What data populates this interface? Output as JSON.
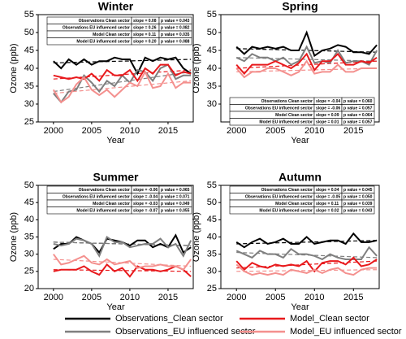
{
  "chart_data": [
    {
      "type": "line",
      "title": "Winter",
      "x_label": "Year",
      "y_label": "Ozone (ppb)",
      "x": [
        2000,
        2001,
        2002,
        2003,
        2004,
        2005,
        2006,
        2007,
        2008,
        2009,
        2010,
        2011,
        2012,
        2013,
        2014,
        2015,
        2016,
        2017,
        2018
      ],
      "xlim": [
        1998,
        2018.3
      ],
      "xticks": [
        2000,
        2005,
        2010,
        2015
      ],
      "ylim": [
        25,
        55
      ],
      "yticks": [
        25,
        30,
        35,
        40,
        45,
        50,
        55
      ],
      "series": [
        {
          "name": "Observations_Clean sector",
          "color": "#000000",
          "values": [
            42,
            40,
            42.5,
            41,
            42.5,
            41,
            42,
            42,
            43,
            42.5,
            42.5,
            38.5,
            43,
            42,
            43,
            42.5,
            43,
            40,
            38.5
          ],
          "trend": [
            41.5,
            42.5
          ]
        },
        {
          "name": "Observations_EU influenced sector",
          "color": "#7f7f7f",
          "values": [
            33,
            30.5,
            33.5,
            34,
            38,
            36,
            33.5,
            36.5,
            35,
            38,
            36,
            39.5,
            39,
            36.5,
            40,
            41,
            37,
            38,
            38
          ],
          "trend": [
            33.5,
            39
          ]
        },
        {
          "name": "Model_Clean sector",
          "color": "#e8191c",
          "values": [
            38,
            37.5,
            37,
            37.5,
            37,
            38.5,
            36.5,
            39.5,
            38,
            38,
            39.5,
            36.5,
            40,
            38.5,
            41,
            41,
            38,
            39,
            38.5
          ],
          "trend": [
            37,
            39.5
          ]
        },
        {
          "name": "Model_EU influenced sector",
          "color": "#f4908e",
          "values": [
            34,
            30.5,
            32,
            35.5,
            37.5,
            34,
            32.5,
            34,
            32,
            34,
            36,
            35,
            39,
            34.5,
            35,
            38.5,
            34.5,
            36,
            36
          ],
          "trend": [
            33,
            36.5
          ]
        }
      ],
      "table": {
        "rows": [
          [
            "Observations  Clean sector",
            "slope = 0.08",
            "p  value = 0.043"
          ],
          [
            "Observations EU influenced sector",
            "slope = 0.26",
            "p  value = 0.082"
          ],
          [
            "Model Clean sector",
            "slope = 0.11",
            "p  value = 0.035"
          ],
          [
            "Model EU influenced sector",
            "slope = 0.20",
            "p  value = 0.088"
          ]
        ]
      }
    },
    {
      "type": "line",
      "title": "Spring",
      "x_label": "Year",
      "y_label": "Ozone (ppb)",
      "x": [
        2000,
        2001,
        2002,
        2003,
        2004,
        2005,
        2006,
        2007,
        2008,
        2009,
        2010,
        2011,
        2012,
        2013,
        2014,
        2015,
        2016,
        2017,
        2018
      ],
      "xlim": [
        1998,
        2018.3
      ],
      "xticks": [
        2000,
        2005,
        2010,
        2015
      ],
      "ylim": [
        25,
        55
      ],
      "yticks": [
        30,
        35,
        40,
        45,
        50,
        55
      ],
      "series": [
        {
          "color": "#000000",
          "values": [
            46,
            44,
            46,
            45.5,
            46,
            45.5,
            46,
            45,
            45,
            50,
            43.5,
            45,
            45.5,
            46.5,
            46,
            44.5,
            44.5,
            44,
            46.5
          ],
          "trend": [
            45.5,
            44.5
          ]
        },
        {
          "color": "#7f7f7f",
          "values": [
            43,
            42,
            44,
            43,
            43,
            42,
            43,
            41,
            42,
            46,
            41.5,
            42,
            41.5,
            45,
            41.5,
            42,
            42,
            41,
            45
          ],
          "trend": [
            43,
            42
          ]
        },
        {
          "color": "#e8191c",
          "values": [
            41,
            38.5,
            41,
            41,
            41,
            42,
            41,
            40,
            41.5,
            44,
            39.5,
            42,
            42,
            44,
            41,
            41,
            42,
            41.5,
            43
          ],
          "trend": [
            40,
            42
          ]
        },
        {
          "color": "#f4908e",
          "values": [
            40,
            37.5,
            39,
            39,
            40,
            40,
            39,
            38,
            39,
            42,
            38.5,
            39,
            39,
            41,
            39,
            39,
            40,
            40,
            40
          ],
          "trend": [
            39,
            40
          ]
        }
      ],
      "table": {
        "rows": [
          [
            "Observations  Clean sector",
            "slope = -0.04",
            "p  value = 0.060"
          ],
          [
            "Observations EU influenced sector",
            "slope = -0.06",
            "p  value = 0.057"
          ],
          [
            "Model Clean sector",
            "slope = 0.09",
            "p  value = 0.064"
          ],
          [
            "Model EU influenced sector",
            "slope = 0.01",
            "p  value = 0.057"
          ]
        ]
      }
    },
    {
      "type": "line",
      "title": "Summer",
      "x_label": "Year",
      "y_label": "Ozone (ppb)",
      "x": [
        2000,
        2001,
        2002,
        2003,
        2004,
        2005,
        2006,
        2007,
        2008,
        2009,
        2010,
        2011,
        2012,
        2013,
        2014,
        2015,
        2016,
        2017,
        2018
      ],
      "xlim": [
        1998,
        2018.3
      ],
      "xticks": [
        2000,
        2005,
        2010,
        2015
      ],
      "ylim": [
        20,
        50
      ],
      "yticks": [
        20,
        25,
        30,
        35,
        40,
        45,
        50
      ],
      "series": [
        {
          "color": "#000000",
          "values": [
            31.5,
            33,
            33,
            35,
            34,
            33,
            30.5,
            34.5,
            34,
            33.5,
            32.5,
            34,
            34,
            32,
            33,
            32,
            35.5,
            30.5,
            32
          ],
          "trend": [
            33.5,
            32.5
          ]
        },
        {
          "color": "#7f7f7f",
          "values": [
            33,
            32.5,
            33,
            34.5,
            34,
            33,
            29.5,
            35,
            33.5,
            33.5,
            32,
            32.5,
            33,
            33,
            34.5,
            32,
            33,
            29.5,
            34
          ],
          "trend": [
            33.5,
            32.5
          ]
        },
        {
          "color": "#e8191c",
          "values": [
            25,
            25.5,
            25.5,
            25.5,
            26.5,
            25,
            24,
            27,
            25,
            26,
            23.5,
            26.5,
            25.5,
            25.5,
            25,
            25.5,
            26.5,
            25.5,
            23.5
          ],
          "trend": [
            25.5,
            25
          ]
        },
        {
          "color": "#f4908e",
          "values": [
            30,
            27,
            27.5,
            28.5,
            29.5,
            27.5,
            27,
            28.5,
            27,
            27.5,
            28,
            26,
            26.5,
            26.5,
            27,
            26.5,
            26.5,
            25.5,
            28.5
          ],
          "trend": [
            28.5,
            26.5
          ]
        }
      ],
      "table": {
        "rows": [
          [
            "Observations  Clean sector",
            "slope = -0.06",
            "p  value = 0.065"
          ],
          [
            "Observations EU influenced sector",
            "slope = -0.04",
            "p  value = 0.071"
          ],
          [
            "Model Clean sector",
            "slope = -0.03",
            "p  value = 0.049"
          ],
          [
            "Model EU influenced sector",
            "slope = -0.07",
            "p  value = 0.055"
          ]
        ]
      }
    },
    {
      "type": "line",
      "title": "Autumn",
      "x_label": "Year",
      "y_label": "Ozone (ppb)",
      "x": [
        2000,
        2001,
        2002,
        2003,
        2004,
        2005,
        2006,
        2007,
        2008,
        2009,
        2010,
        2011,
        2012,
        2013,
        2014,
        2015,
        2016,
        2017,
        2018
      ],
      "xlim": [
        1998,
        2018.3
      ],
      "xticks": [
        2000,
        2005,
        2010,
        2015
      ],
      "ylim": [
        25,
        55
      ],
      "yticks": [
        25,
        30,
        35,
        40,
        45,
        50,
        55
      ],
      "series": [
        {
          "color": "#000000",
          "values": [
            38.5,
            37,
            38.5,
            39.5,
            38,
            38.5,
            39.5,
            38,
            38,
            40,
            38,
            38.5,
            39,
            39,
            38,
            41,
            38.5,
            38.5,
            39
          ],
          "trend": [
            38,
            39
          ]
        },
        {
          "color": "#7f7f7f",
          "values": [
            36,
            35,
            34,
            36,
            35,
            35,
            34,
            36.5,
            35,
            35,
            34.5,
            33.5,
            35,
            34,
            33.5,
            33.5,
            33.5,
            37,
            34.5
          ],
          "trend": [
            35.5,
            34
          ]
        },
        {
          "color": "#e8191c",
          "values": [
            33,
            30.5,
            32.5,
            31.5,
            31,
            32,
            31.5,
            32,
            31.5,
            33,
            30,
            32.5,
            33,
            33,
            32,
            34,
            31.5,
            32,
            33.5
          ],
          "trend": [
            31,
            33
          ]
        },
        {
          "color": "#f4908e",
          "values": [
            32,
            30,
            29,
            29.5,
            29,
            29.5,
            29,
            30.5,
            30,
            29.5,
            30.5,
            29.5,
            30.5,
            31,
            29.5,
            29,
            30.5,
            31,
            31
          ],
          "trend": [
            30,
            30.5
          ]
        }
      ],
      "table": {
        "rows": [
          [
            "Observations  Clean sector",
            "slope = 0.04",
            "p  value = 0.045"
          ],
          [
            "Observations EU influenced sector",
            "slope = -0.05",
            "p  value = 0.050"
          ],
          [
            "Model Clean sector",
            "slope = 0.11",
            "p  value = 0.039"
          ],
          [
            "Model EU influenced sector",
            "slope = 0.02",
            "p  value = 0.043"
          ]
        ]
      }
    }
  ]
}
